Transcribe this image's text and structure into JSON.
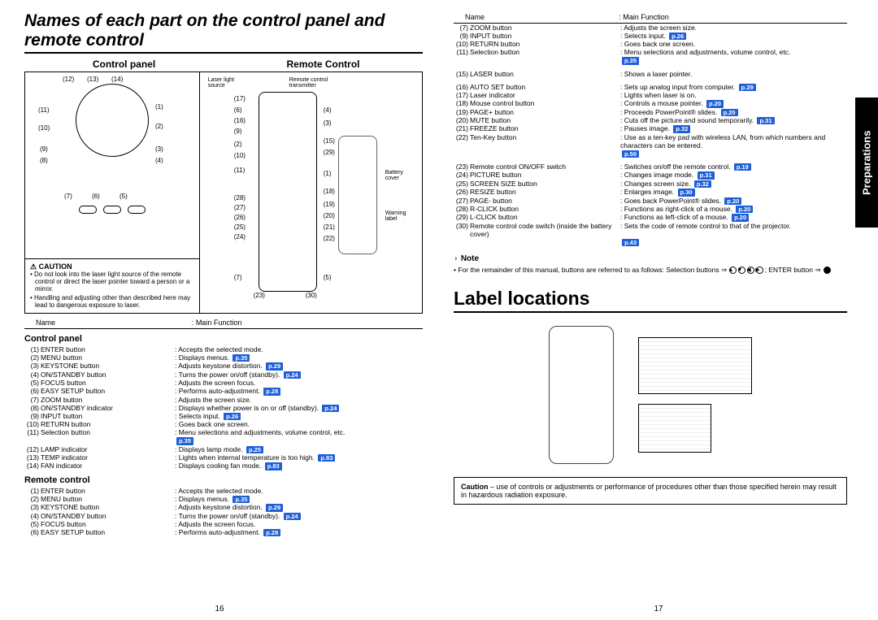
{
  "title_main": "Names of each part on the control panel and remote control",
  "head_left": "Control panel",
  "head_right": "Remote Control",
  "caution_head": "⚠ CAUTION",
  "caution_items": [
    "Do not look into the laser light source of the remote control or direct the laser pointer toward a person or a mirror.",
    "Handling and adjusting other than described here may lead to dangerous exposure to laser."
  ],
  "th_name": "Name",
  "th_func": "Main Function",
  "sect_cp": "Control panel",
  "sect_rc": "Remote control",
  "rc_labels": {
    "laser": "Laser light source",
    "transmitter": "Remote control transmitter",
    "battery": "Battery cover",
    "warning": "Warning label"
  },
  "cp_items": [
    {
      "n": "(1)",
      "name": "ENTER button",
      "desc": "Accepts the selected mode.",
      "p": ""
    },
    {
      "n": "(2)",
      "name": "MENU button",
      "desc": "Displays menus.",
      "p": "p.35"
    },
    {
      "n": "(3)",
      "name": "KEYSTONE button",
      "desc": "Adjusts keystone distortion.",
      "p": "p.29"
    },
    {
      "n": "(4)",
      "name": "ON/STANDBY button",
      "desc": "Turns the power on/off (standby).",
      "p": "p.24"
    },
    {
      "n": "(5)",
      "name": "FOCUS button",
      "desc": "Adjusts the screen focus.",
      "p": ""
    },
    {
      "n": "(6)",
      "name": "EASY SETUP button",
      "desc": "Performs auto-adjustment.",
      "p": "p.28"
    },
    {
      "n": "(7)",
      "name": "ZOOM button",
      "desc": "Adjusts the screen size.",
      "p": ""
    },
    {
      "n": "(8)",
      "name": "ON/STANDBY indicator",
      "desc": "Displays whether power is on or off (standby).",
      "p": "p.24"
    },
    {
      "n": "(9)",
      "name": "INPUT button",
      "desc": "Selects input.",
      "p": "p.26"
    },
    {
      "n": "(10)",
      "name": "RETURN button",
      "desc": "Goes back one screen.",
      "p": ""
    },
    {
      "n": "(11)",
      "name": "Selection button",
      "desc": "Menu selections and adjustments, volume control, etc.",
      "p": "p.35"
    },
    {
      "n": "(12)",
      "name": "LAMP indicator",
      "desc": "Displays lamp mode.",
      "p": "p.25"
    },
    {
      "n": "(13)",
      "name": "TEMP indicator",
      "desc": "Lights when internal temperature is too high.",
      "p": "p.83"
    },
    {
      "n": "(14)",
      "name": "FAN indicator",
      "desc": "Displays cooling fan mode.",
      "p": "p.83"
    }
  ],
  "rc_items_left": [
    {
      "n": "(1)",
      "name": "ENTER button",
      "desc": "Accepts the selected mode.",
      "p": ""
    },
    {
      "n": "(2)",
      "name": "MENU button",
      "desc": "Displays menus.",
      "p": "p.35"
    },
    {
      "n": "(3)",
      "name": "KEYSTONE button",
      "desc": "Adjusts keystone distortion.",
      "p": "p.29"
    },
    {
      "n": "(4)",
      "name": "ON/STANDBY button",
      "desc": "Turns the power on/off (standby).",
      "p": "p.24"
    },
    {
      "n": "(5)",
      "name": "FOCUS button",
      "desc": "Adjusts the screen focus.",
      "p": ""
    },
    {
      "n": "(6)",
      "name": "EASY SETUP button",
      "desc": "Performs auto-adjustment.",
      "p": "p.28"
    }
  ],
  "rc_items_right": [
    {
      "n": "(7)",
      "name": "ZOOM button",
      "desc": "Adjusts the screen size.",
      "p": ""
    },
    {
      "n": "(9)",
      "name": "INPUT button",
      "desc": "Selects input.",
      "p": "p.26"
    },
    {
      "n": "(10)",
      "name": "RETURN button",
      "desc": "Goes back one screen.",
      "p": ""
    },
    {
      "n": "(11)",
      "name": "Selection button",
      "desc": "Menu selections and adjustments, volume control, etc.",
      "p": "p.35"
    },
    {
      "n": "(15)",
      "name": "LASER button",
      "desc": "Shows a laser pointer.",
      "p": ""
    },
    {
      "n": "(16)",
      "name": "AUTO SET button",
      "desc": "Sets up analog input from computer.",
      "p": "p.29"
    },
    {
      "n": "(17)",
      "name": "Laser indicator",
      "desc": "Lights when laser is on.",
      "p": ""
    },
    {
      "n": "(18)",
      "name": "Mouse control button",
      "desc": "Controls a mouse pointer.",
      "p": "p.20"
    },
    {
      "n": "(19)",
      "name": "PAGE+ button",
      "desc": "Proceeds PowerPoint® slides.",
      "p": "p.20"
    },
    {
      "n": "(20)",
      "name": "MUTE button",
      "desc": "Cuts off the picture and sound temporarily.",
      "p": "p.31"
    },
    {
      "n": "(21)",
      "name": "FREEZE button",
      "desc": "Pauses image.",
      "p": "p.32"
    },
    {
      "n": "(22)",
      "name": "Ten-Key button",
      "desc": "Use as a ten-key pad with wireless LAN, from which numbers and characters can be entered.",
      "p": "p.50"
    },
    {
      "n": "(23)",
      "name": "Remote control ON/OFF switch",
      "desc": "Switches on/off the remote control.",
      "p": "p.19"
    },
    {
      "n": "(24)",
      "name": "PICTURE button",
      "desc": "Changes image mode.",
      "p": "p.31"
    },
    {
      "n": "(25)",
      "name": "SCREEN SIZE button",
      "desc": "Changes screen size.",
      "p": "p.32"
    },
    {
      "n": "(26)",
      "name": "RESIZE button",
      "desc": "Enlarges image.",
      "p": "p.30"
    },
    {
      "n": "(27)",
      "name": "PAGE- button",
      "desc": "Goes back PowerPoint® slides.",
      "p": "p.20"
    },
    {
      "n": "(28)",
      "name": "R-CLICK button",
      "desc": "Functions as right-click of a mouse.",
      "p": "p.20"
    },
    {
      "n": "(29)",
      "name": "L-CLICK button",
      "desc": "Functions as left-click of a mouse.",
      "p": "p.20"
    },
    {
      "n": "(30)",
      "name": "Remote control code switch (inside the battery cover)",
      "desc": "Sets the code of remote control to that of the projector.",
      "p": "p.43"
    }
  ],
  "note_head": "Note",
  "note_body": "For the remainder of this manual, buttons are referred to as follows: Selection buttons ⇒ ",
  "note_body2": "; ENTER button ⇒ ",
  "label_loc_title": "Label locations",
  "caution_bottom": "Caution – use of controls or adjustments or performance of procedures other than those specified herein may result in hazardous radiation exposure.",
  "side_tab": "Preparations",
  "pg_left": "16",
  "pg_right": "17"
}
